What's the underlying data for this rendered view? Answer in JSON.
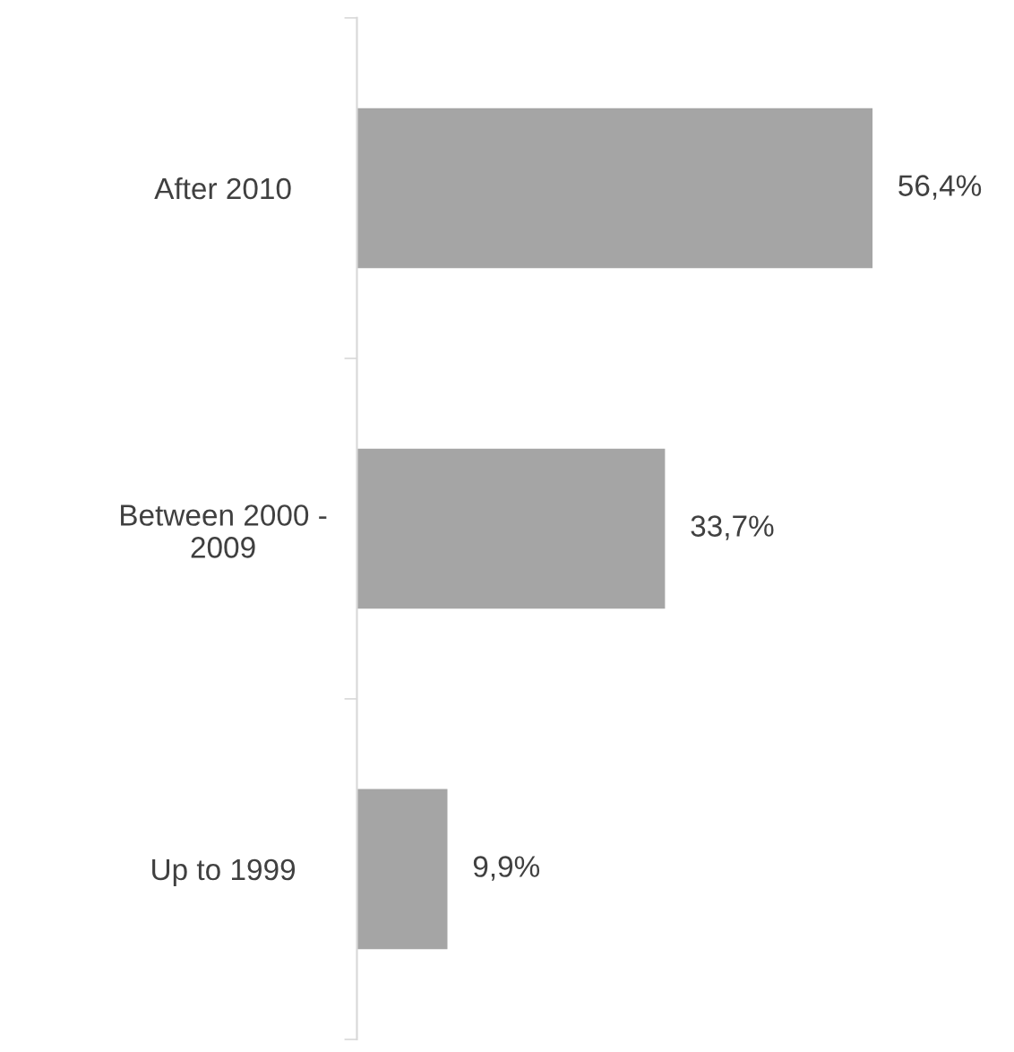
{
  "chart_data": {
    "type": "bar",
    "orientation": "horizontal",
    "categories": [
      "After 2010",
      "Between 2000 -\n2009",
      "Up to 1999"
    ],
    "values": [
      56.4,
      33.7,
      9.9
    ],
    "value_labels": [
      "56,4%",
      "33,7%",
      "9,9%"
    ],
    "color": "#a5a5a5"
  }
}
